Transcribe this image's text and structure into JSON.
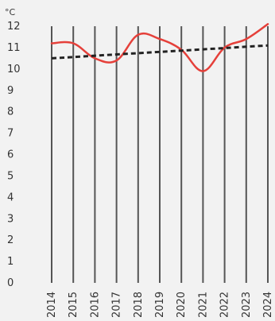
{
  "chart_data": {
    "type": "line",
    "ylabel": "°C",
    "x": [
      "2014",
      "2015",
      "2016",
      "2017",
      "2018",
      "2019",
      "2020",
      "2021",
      "2022",
      "2023",
      "2024"
    ],
    "series": [
      {
        "values": [
          11.2,
          11.2,
          10.5,
          10.4,
          11.6,
          11.4,
          10.9,
          9.9,
          11.0,
          11.4,
          12.1
        ],
        "color": "#e5403a",
        "style": "solid"
      },
      {
        "values": [
          10.5,
          10.56,
          10.62,
          10.68,
          10.74,
          10.8,
          10.86,
          10.92,
          10.98,
          11.04,
          11.1
        ],
        "color": "#222222",
        "style": "dashed"
      }
    ],
    "yticks": [
      "0",
      "1",
      "2",
      "3",
      "4",
      "5",
      "6",
      "7",
      "8",
      "9",
      "10",
      "11",
      "12"
    ],
    "ylim": [
      0,
      12
    ],
    "grid": "vertical lines at each year",
    "legend": "none",
    "colors": {
      "background": "#f2f2f2",
      "gridline": "#555555",
      "text": "#333333"
    }
  }
}
